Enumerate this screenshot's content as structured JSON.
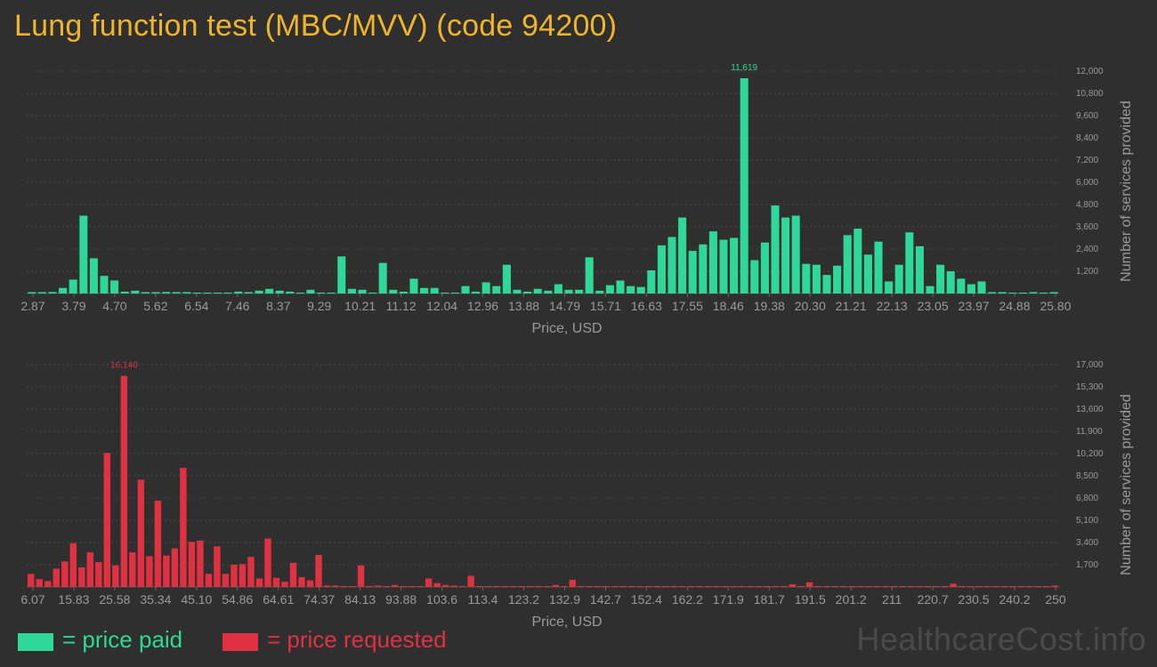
{
  "title": "Lung function test (MBC/MVV) (code 94200)",
  "chart_data": [
    {
      "type": "bar",
      "name": "price_paid",
      "color": "#2ed89b",
      "xlabel": "Price, USD",
      "ylabel": "Number of services provided",
      "ylim": [
        0,
        12000
      ],
      "yticks": [
        "1,200",
        "2,400",
        "3,600",
        "4,800",
        "6,000",
        "7,200",
        "8,400",
        "9,600",
        "10,800",
        "12,000"
      ],
      "ytick_values": [
        1200,
        2400,
        3600,
        4800,
        6000,
        7200,
        8400,
        9600,
        10800,
        12000
      ],
      "xticks": [
        "2.87",
        "3.79",
        "4.70",
        "5.62",
        "6.54",
        "7.46",
        "8.37",
        "9.29",
        "10.21",
        "11.12",
        "12.04",
        "12.96",
        "13.88",
        "14.79",
        "15.71",
        "16.63",
        "17.55",
        "18.46",
        "19.38",
        "20.30",
        "21.21",
        "22.13",
        "23.05",
        "23.97",
        "24.88",
        "25.80"
      ],
      "peak_label": "11,619",
      "values": [
        50,
        20,
        80,
        300,
        750,
        4200,
        1900,
        950,
        700,
        100,
        150,
        20,
        50,
        80,
        20,
        50,
        0,
        0,
        0,
        0,
        100,
        20,
        150,
        250,
        150,
        100,
        0,
        200,
        0,
        0,
        2000,
        250,
        200,
        0,
        1650,
        200,
        100,
        800,
        300,
        300,
        0,
        0,
        400,
        100,
        600,
        400,
        1550,
        200,
        100,
        250,
        150,
        500,
        200,
        200,
        1950,
        150,
        450,
        700,
        400,
        350,
        1250,
        2600,
        3050,
        4100,
        2300,
        2650,
        3350,
        2900,
        3000,
        11619,
        1800,
        2750,
        4750,
        4100,
        4200,
        1600,
        1550,
        1000,
        1500,
        3150,
        3500,
        2100,
        2800,
        650,
        1550,
        3300,
        2550,
        400,
        1550,
        1200,
        800,
        500,
        650,
        50,
        30,
        0,
        0,
        20,
        0,
        50
      ]
    },
    {
      "type": "bar",
      "name": "price_requested",
      "color": "#e03143",
      "xlabel": "Price, USD",
      "ylabel": "Number of services provided",
      "ylim": [
        0,
        17000
      ],
      "yticks": [
        "1,700",
        "3,400",
        "5,100",
        "6,800",
        "8,500",
        "10,200",
        "11,900",
        "13,600",
        "15,300",
        "17,000"
      ],
      "ytick_values": [
        1700,
        3400,
        5100,
        6800,
        8500,
        10200,
        11900,
        13600,
        15300,
        17000
      ],
      "xticks": [
        "6.07",
        "15.83",
        "25.58",
        "35.34",
        "45.10",
        "54.86",
        "64.61",
        "74.37",
        "84.13",
        "93.88",
        "103.6",
        "113.4",
        "123.2",
        "132.9",
        "142.7",
        "152.4",
        "162.2",
        "171.9",
        "181.7",
        "191.5",
        "201.2",
        "211",
        "220.7",
        "230.5",
        "240.2",
        "250"
      ],
      "peak_label": "16,140",
      "values": [
        1000,
        600,
        450,
        1400,
        1950,
        3350,
        1500,
        2650,
        1900,
        10250,
        1650,
        16140,
        2650,
        8200,
        2350,
        6600,
        2400,
        2950,
        9100,
        3450,
        3550,
        1000,
        3100,
        1000,
        1700,
        1750,
        2300,
        650,
        3700,
        700,
        400,
        1850,
        750,
        500,
        2450,
        100,
        100,
        0,
        0,
        1650,
        0,
        50,
        0,
        150,
        0,
        0,
        0,
        650,
        300,
        150,
        100,
        0,
        850,
        0,
        0,
        0,
        0,
        0,
        0,
        0,
        0,
        0,
        150,
        0,
        550,
        0,
        0,
        0,
        0,
        0,
        0,
        0,
        0,
        0,
        0,
        0,
        0,
        0,
        0,
        0,
        0,
        0,
        0,
        0,
        0,
        0,
        0,
        0,
        0,
        0,
        200,
        0,
        350,
        0,
        0,
        0,
        0,
        0,
        0,
        0,
        0,
        0,
        0,
        0,
        0,
        0,
        0,
        0,
        0,
        250,
        0,
        0,
        0,
        0,
        0,
        0,
        0,
        0,
        0,
        0,
        0,
        50
      ]
    }
  ],
  "legend": {
    "paid_label": "= price paid",
    "requested_label": "= price requested",
    "paid_color": "#2ed89b",
    "requested_color": "#e03143"
  },
  "watermark": "HealthcareCost.info"
}
